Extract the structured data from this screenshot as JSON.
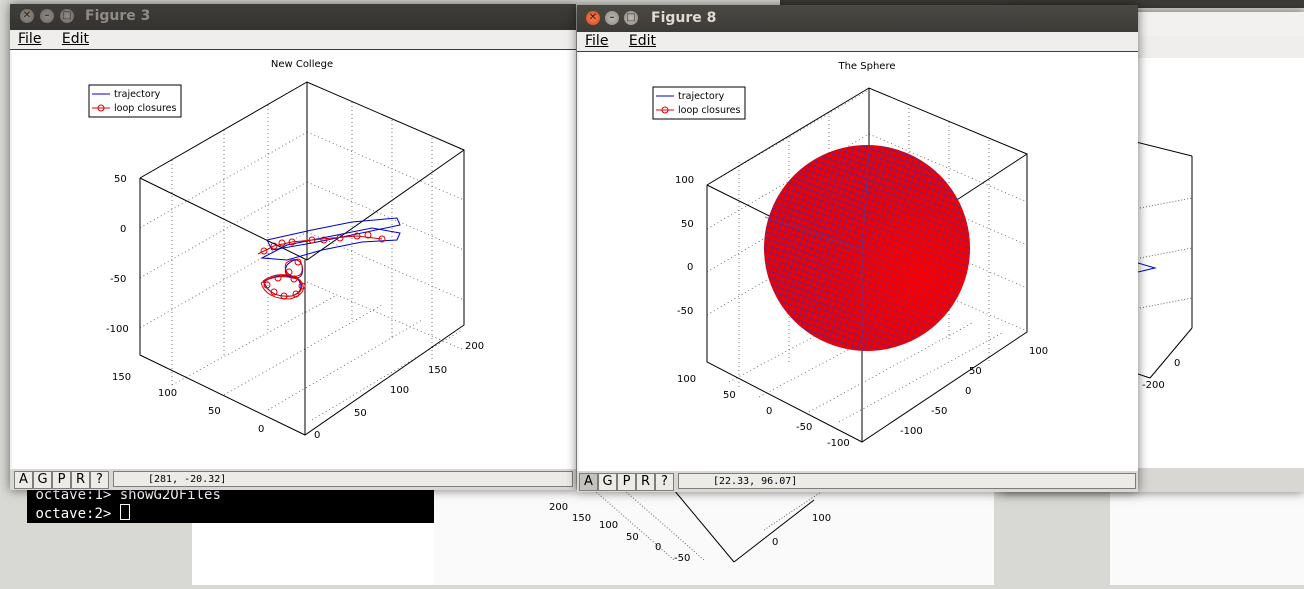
{
  "desktop": {
    "background_color": "#d8d8d4"
  },
  "figure3": {
    "title": "Figure 3",
    "menu": [
      "File",
      "Edit"
    ],
    "plot_title": "New College",
    "legend": [
      "trajectory",
      "loop closures"
    ],
    "z_ticks": [
      "50",
      "0",
      "-50",
      "-100"
    ],
    "y_ticks": [
      "150",
      "100",
      "50",
      "0"
    ],
    "x_ticks": [
      "200",
      "150",
      "100",
      "50",
      "0"
    ],
    "tools": [
      "A",
      "G",
      "P",
      "R",
      "?"
    ],
    "coords": "[281, -20.32]"
  },
  "figure8": {
    "title": "Figure 8",
    "menu": [
      "File",
      "Edit"
    ],
    "plot_title": "The Sphere",
    "legend": [
      "trajectory",
      "loop closures"
    ],
    "z_ticks": [
      "100",
      "50",
      "0",
      "-50"
    ],
    "y_ticks": [
      "100",
      "50",
      "0",
      "-50",
      "-100"
    ],
    "x_ticks": [
      "100",
      "50",
      "0",
      "-50",
      "-100"
    ],
    "tools": [
      "A",
      "G",
      "P",
      "R",
      "?"
    ],
    "coords": "[22.33, 96.07]"
  },
  "right_window": {
    "ticks": [
      "0",
      "-200"
    ]
  },
  "bottom_window": {
    "y_ticks": [
      "200",
      "150",
      "100",
      "50",
      "0",
      "-50"
    ],
    "x_ticks": [
      "100",
      "0"
    ]
  },
  "terminal": {
    "lines": [
      {
        "prompt": "octave:1> ",
        "command": "showG2OFiles"
      },
      {
        "prompt": "octave:2> ",
        "command": ""
      }
    ]
  },
  "colors": {
    "trajectory": "#0000cc",
    "loop_closures": "#dd0000",
    "titlebar": "#3c3b37",
    "close_button": "#dd4814"
  }
}
